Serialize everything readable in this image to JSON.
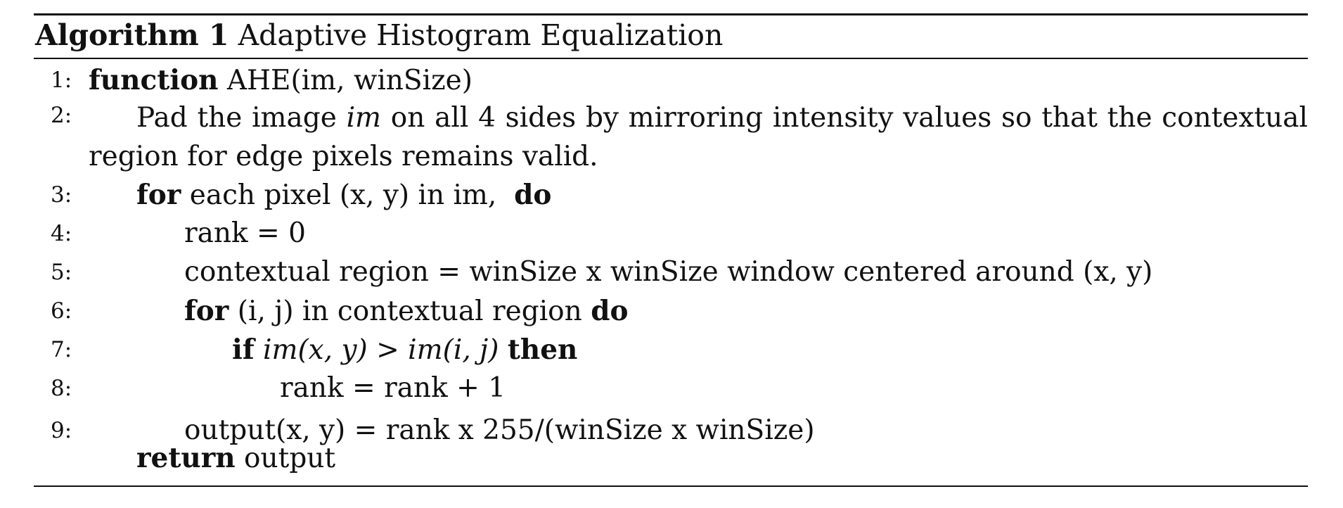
{
  "algorithm": {
    "label": "Algorithm 1",
    "title": "Adaptive Histogram Equalization",
    "lines": [
      {
        "num": "1:",
        "kw_function": "function",
        "signature": "AHE(im, winSize)"
      },
      {
        "num": "2:",
        "text_before": "Pad the image",
        "var_im": "im",
        "text_after": "on all 4 sides by mirroring intensity values so that the contextual region for edge pixels remains valid."
      },
      {
        "num": "3:",
        "kw_for": "for",
        "text": "each pixel (x, y) in im,",
        "kw_do": "do"
      },
      {
        "num": "4:",
        "text": "rank = 0"
      },
      {
        "num": "5:",
        "text": "contextual region = winSize x winSize window centered around (x, y)"
      },
      {
        "num": "6:",
        "kw_for": "for",
        "text": "(i, j) in contextual region",
        "kw_do": "do"
      },
      {
        "num": "7:",
        "kw_if": "if",
        "condition": "im(x, y) > im(i, j)",
        "kw_then": "then"
      },
      {
        "num": "8:",
        "text": "rank = rank + 1"
      },
      {
        "num": "9:",
        "text": "output(x, y) = rank x 255/(winSize x winSize)"
      }
    ],
    "return_line": {
      "kw_return": "return",
      "text": "output"
    }
  }
}
